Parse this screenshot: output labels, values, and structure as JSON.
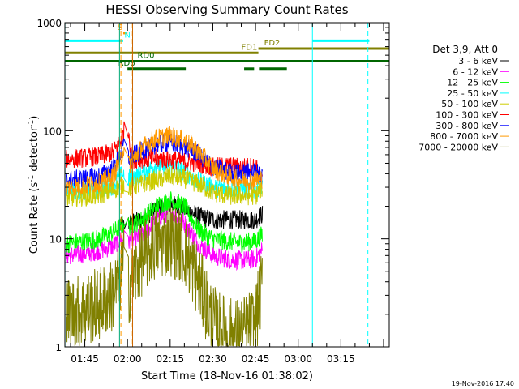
{
  "chart_data": {
    "type": "line",
    "title": "HESSI Observing Summary Count Rates",
    "xlabel": "Start Time (18-Nov-16 01:38:02)",
    "ylabel": "Count Rate (s-1 detector-1)",
    "ylabel_parts": {
      "base": "Count Rate (s",
      "sup1": "-1",
      "mid": " detector",
      "sup2": "-1",
      "end": ")"
    },
    "yscale": "log",
    "ylim": [
      1,
      1000
    ],
    "y_ticks": [
      {
        "value": 1,
        "label": "1"
      },
      {
        "value": 10,
        "label": "10"
      },
      {
        "value": 100,
        "label": "100"
      },
      {
        "value": 1000,
        "label": "1000"
      }
    ],
    "xlim_minutes": [
      98,
      212
    ],
    "x_ticks": [
      {
        "minute": 105,
        "label": "01:45"
      },
      {
        "minute": 120,
        "label": "02:00"
      },
      {
        "minute": 135,
        "label": "02:15"
      },
      {
        "minute": 150,
        "label": "02:30"
      },
      {
        "minute": 165,
        "label": "02:45"
      },
      {
        "minute": 180,
        "label": "03:00"
      },
      {
        "minute": 195,
        "label": "03:15"
      }
    ],
    "legend_title": "Det 3,9, Att 0",
    "legend_position": "right",
    "series": [
      {
        "name": "3 - 6 keV",
        "color": "#000000",
        "profile": [
          [
            117.5,
            13
          ],
          [
            118.7,
            13
          ],
          [
            120.5,
            14
          ],
          [
            125,
            15
          ],
          [
            130,
            19
          ],
          [
            135,
            21
          ],
          [
            140,
            19
          ],
          [
            145,
            16
          ],
          [
            150,
            15
          ],
          [
            155,
            15
          ],
          [
            160,
            15
          ],
          [
            165,
            15
          ],
          [
            167.5,
            17
          ]
        ]
      },
      {
        "name": "6 - 12 keV",
        "color": "#ff00ff",
        "profile": [
          [
            98.5,
            7
          ],
          [
            105,
            7.3
          ],
          [
            110,
            7.8
          ],
          [
            115,
            8.5
          ],
          [
            117.5,
            10
          ],
          [
            118.7,
            10
          ],
          [
            120.5,
            9.5
          ],
          [
            125,
            10.5
          ],
          [
            130,
            15
          ],
          [
            135,
            18
          ],
          [
            140,
            14
          ],
          [
            145,
            9
          ],
          [
            150,
            7
          ],
          [
            155,
            6.5
          ],
          [
            160,
            6.3
          ],
          [
            165,
            6.5
          ],
          [
            167.5,
            8
          ]
        ]
      },
      {
        "name": "12 - 25 keV",
        "color": "#00ff00",
        "profile": [
          [
            98.5,
            9
          ],
          [
            105,
            9.5
          ],
          [
            110,
            10
          ],
          [
            115,
            11.5
          ],
          [
            117.5,
            13
          ],
          [
            118.7,
            14
          ],
          [
            120.5,
            13
          ],
          [
            125,
            15
          ],
          [
            130,
            20
          ],
          [
            135,
            23
          ],
          [
            140,
            20
          ],
          [
            145,
            12
          ],
          [
            150,
            10
          ],
          [
            155,
            9.5
          ],
          [
            160,
            9.2
          ],
          [
            165,
            9.5
          ],
          [
            167.5,
            11
          ]
        ]
      },
      {
        "name": "25 - 50 keV",
        "color": "#00ffff",
        "profile": [
          [
            98.5,
            28
          ],
          [
            105,
            28
          ],
          [
            110,
            29
          ],
          [
            115,
            31
          ],
          [
            117.5,
            38
          ],
          [
            118.7,
            40
          ],
          [
            120.5,
            36
          ],
          [
            125,
            40
          ],
          [
            130,
            48
          ],
          [
            135,
            47
          ],
          [
            140,
            42
          ],
          [
            145,
            34
          ],
          [
            150,
            30
          ],
          [
            155,
            29
          ],
          [
            160,
            29
          ],
          [
            165,
            28
          ],
          [
            167.5,
            33
          ]
        ]
      },
      {
        "name": "50 - 100 keV",
        "color": "#cccc00",
        "profile": [
          [
            98.5,
            24
          ],
          [
            105,
            24.5
          ],
          [
            110,
            25
          ],
          [
            115,
            28
          ],
          [
            117.5,
            31
          ],
          [
            118.7,
            32
          ],
          [
            120.5,
            30
          ],
          [
            125,
            32
          ],
          [
            130,
            35
          ],
          [
            135,
            38
          ],
          [
            140,
            36
          ],
          [
            145,
            32
          ],
          [
            150,
            27
          ],
          [
            155,
            25
          ],
          [
            160,
            25
          ],
          [
            165,
            25
          ],
          [
            167.5,
            30
          ]
        ]
      },
      {
        "name": "100 - 300 keV",
        "color": "#ff0000",
        "profile": [
          [
            98.5,
            55
          ],
          [
            105,
            56
          ],
          [
            110,
            58
          ],
          [
            115,
            63
          ],
          [
            117.5,
            80
          ],
          [
            118.7,
            100
          ],
          [
            120.5,
            98
          ],
          [
            121.5,
            55
          ],
          [
            125,
            55
          ],
          [
            130,
            55
          ],
          [
            135,
            54
          ],
          [
            140,
            52
          ],
          [
            145,
            50
          ],
          [
            150,
            46
          ],
          [
            155,
            47
          ],
          [
            160,
            46
          ],
          [
            165,
            47
          ],
          [
            167.5,
            33
          ]
        ]
      },
      {
        "name": "300 - 800 keV",
        "color": "#0000ff",
        "profile": [
          [
            98.5,
            35
          ],
          [
            105,
            36
          ],
          [
            110,
            38
          ],
          [
            115,
            45
          ],
          [
            117.5,
            60
          ],
          [
            118.7,
            75
          ],
          [
            120.5,
            55
          ],
          [
            125,
            65
          ],
          [
            130,
            75
          ],
          [
            135,
            78
          ],
          [
            140,
            72
          ],
          [
            145,
            60
          ],
          [
            150,
            46
          ],
          [
            155,
            42
          ],
          [
            160,
            40
          ],
          [
            165,
            42
          ],
          [
            167.5,
            38
          ]
        ]
      },
      {
        "name": "800 - 7000 keV",
        "color": "#ff9900",
        "profile": [
          [
            98.5,
            30
          ],
          [
            105,
            31
          ],
          [
            110,
            33
          ],
          [
            115,
            38
          ],
          [
            117.5,
            55
          ],
          [
            118.7,
            68
          ],
          [
            120.5,
            48
          ],
          [
            125,
            70
          ],
          [
            130,
            85
          ],
          [
            135,
            90
          ],
          [
            140,
            82
          ],
          [
            145,
            65
          ],
          [
            150,
            45
          ],
          [
            155,
            38
          ],
          [
            160,
            35
          ],
          [
            165,
            35
          ],
          [
            167.5,
            36
          ]
        ]
      },
      {
        "name": "7000 - 20000 keV",
        "color": "#808000",
        "profile": [
          [
            98.5,
            2
          ],
          [
            105,
            2.2
          ],
          [
            110,
            2.5
          ],
          [
            115,
            3
          ],
          [
            117.5,
            4.5
          ],
          [
            118.7,
            6
          ],
          [
            120.5,
            3.5
          ],
          [
            125,
            6.5
          ],
          [
            130,
            9
          ],
          [
            135,
            10
          ],
          [
            140,
            8
          ],
          [
            145,
            4
          ],
          [
            150,
            1.7
          ],
          [
            155,
            1.3
          ],
          [
            160,
            1.3
          ],
          [
            165,
            1.7
          ],
          [
            167.5,
            4
          ]
        ]
      }
    ],
    "state_flags": [
      {
        "label": "S",
        "color": "#ff9900",
        "log_y": 800,
        "label_at": 116.5,
        "segments": [
          [
            118.5,
            120
          ]
        ]
      },
      {
        "label": "N",
        "color": "#00ffff",
        "log_y": 680,
        "label_at": 118.9,
        "segments": [
          [
            98,
            118.5
          ],
          [
            185,
            205
          ]
        ]
      },
      {
        "label": "FD1",
        "color": "#808000",
        "log_y": 525,
        "label_at": 160,
        "segments": [
          [
            98,
            166
          ]
        ]
      },
      {
        "label": "FD2",
        "color": "#808000",
        "log_y": 575,
        "label_at": 168,
        "segments": [
          [
            166,
            212
          ]
        ]
      },
      {
        "label": "RD0",
        "color": "#006600",
        "log_y": 440,
        "label_at": 123.5,
        "segments": [
          [
            98,
            212
          ]
        ]
      },
      {
        "label": "RD6",
        "color": "#006600",
        "log_y": 375,
        "label_at": 116.7,
        "segments": [
          [
            120,
            140.5
          ],
          [
            161,
            164.5
          ],
          [
            166.5,
            176
          ]
        ]
      }
    ],
    "eclipse_markers": {
      "night_start": {
        "minute": 185,
        "color": "#00ffff"
      },
      "night_end": {
        "minute": 204.5,
        "color": "#00ffff"
      },
      "saa_start": {
        "minute": 117.7,
        "color": "#ff9900"
      },
      "saa_end": {
        "minute": 121.3,
        "color": "#ff9900"
      },
      "solid_lines": [
        {
          "minute": 117.2,
          "color": "#00aa77"
        },
        {
          "minute": 121.8,
          "color": "#cc6600"
        }
      ]
    },
    "footer_timestamp": "19-Nov-2016 17:40"
  }
}
